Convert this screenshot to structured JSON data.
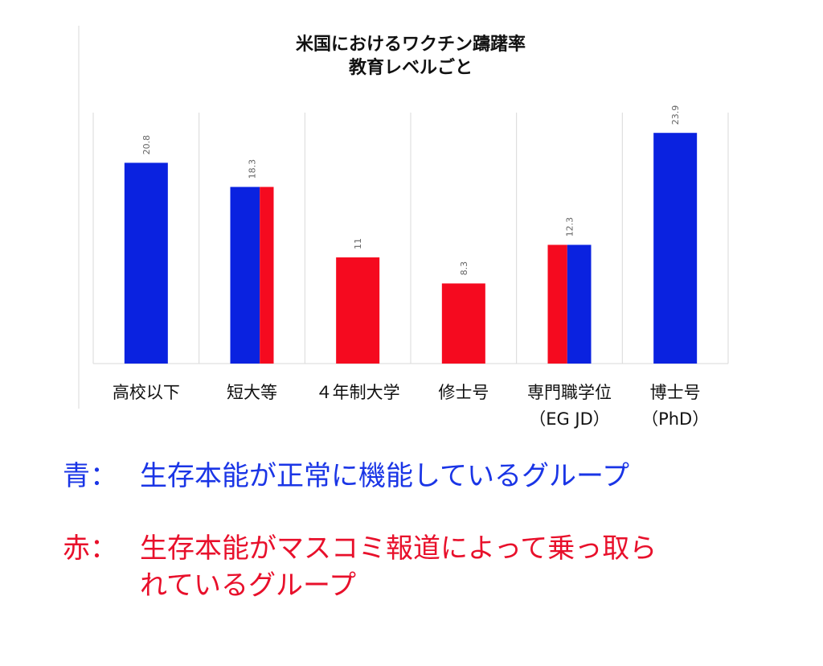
{
  "chart_data": {
    "type": "bar",
    "title": [
      "米国におけるワクチン躊躇率",
      "教育レベルごと"
    ],
    "categories": [
      [
        "高校以下"
      ],
      [
        "短大等"
      ],
      [
        "４年制大学"
      ],
      [
        "修士号"
      ],
      [
        "専門職学位",
        "（EG JD）"
      ],
      [
        "博士号",
        "（PhD）"
      ]
    ],
    "values": [
      20.8,
      18.3,
      11,
      8.3,
      12.3,
      23.9
    ],
    "value_labels": [
      "20.8",
      "18.3",
      "11",
      "8.3",
      "12.3",
      "23.9"
    ],
    "bar_fills": [
      [
        "blue"
      ],
      [
        "blue",
        "red"
      ],
      [
        "red"
      ],
      [
        "red"
      ],
      [
        "red",
        "blue"
      ],
      [
        "blue"
      ]
    ],
    "ylim": [
      0,
      26
    ],
    "grid": "vertical separators",
    "colors": {
      "blue": "#0a22e0",
      "red": "#f50a1f"
    }
  },
  "legend": {
    "blue": {
      "key": "青：",
      "text": "生存本能が正常に機能しているグループ"
    },
    "red": {
      "key": "赤：",
      "text_line1": "生存本能がマスコミ報道によって乗っ取ら",
      "text_line2": "れているグループ"
    }
  }
}
